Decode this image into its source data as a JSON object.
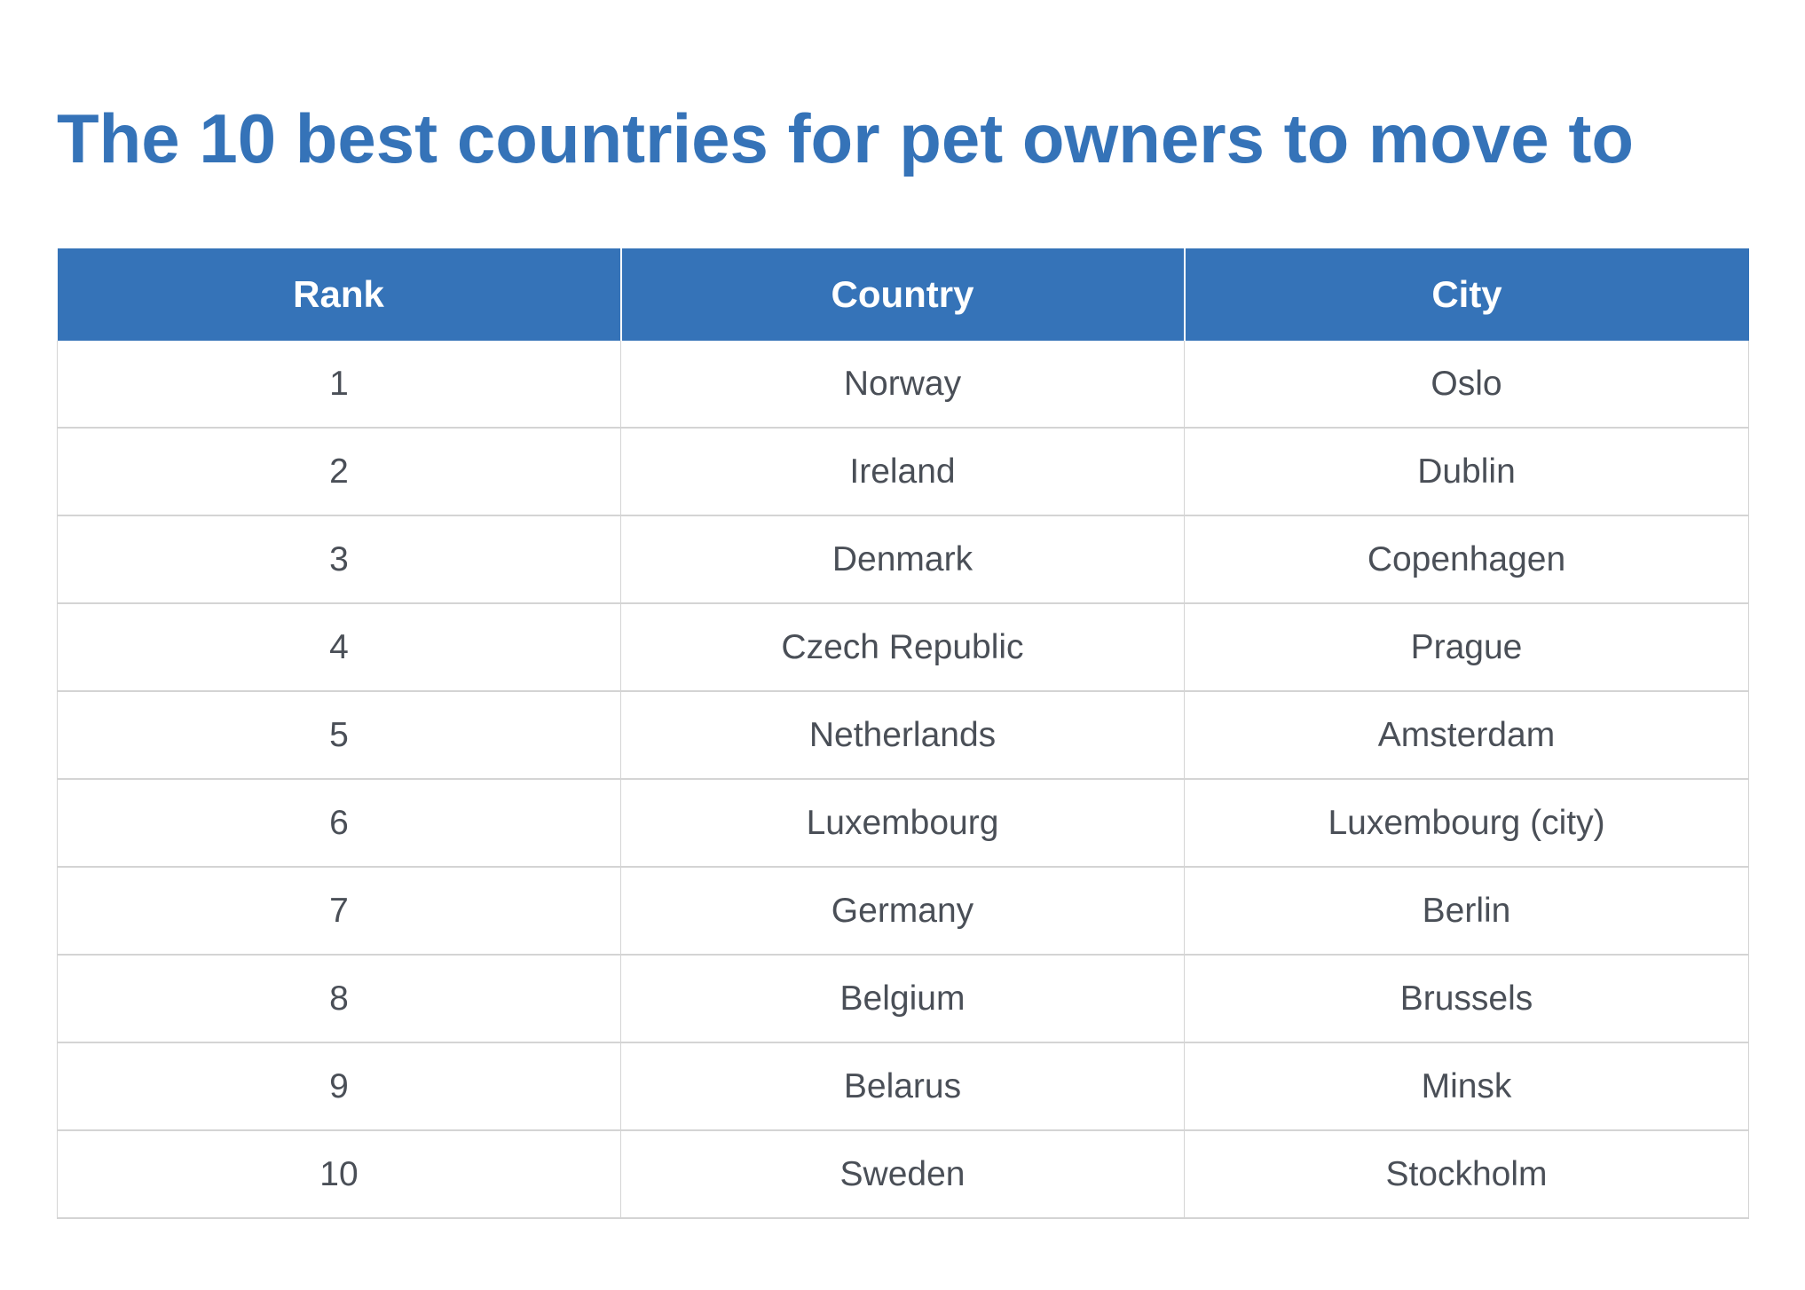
{
  "title": "The 10 best countries for pet owners to move to",
  "table": {
    "headers": [
      "Rank",
      "Country",
      "City"
    ],
    "rows": [
      {
        "rank": "1",
        "country": "Norway",
        "city": "Oslo"
      },
      {
        "rank": "2",
        "country": "Ireland",
        "city": "Dublin"
      },
      {
        "rank": "3",
        "country": "Denmark",
        "city": "Copenhagen"
      },
      {
        "rank": "4",
        "country": "Czech Republic",
        "city": "Prague"
      },
      {
        "rank": "5",
        "country": "Netherlands",
        "city": "Amsterdam"
      },
      {
        "rank": "6",
        "country": "Luxembourg",
        "city": "Luxembourg (city)"
      },
      {
        "rank": "7",
        "country": "Germany",
        "city": "Berlin"
      },
      {
        "rank": "8",
        "country": "Belgium",
        "city": "Brussels"
      },
      {
        "rank": "9",
        "country": "Belarus",
        "city": "Minsk"
      },
      {
        "rank": "10",
        "country": "Sweden",
        "city": "Stockholm"
      }
    ]
  },
  "colors": {
    "accent": "#3573b8",
    "header_text": "#ffffff",
    "body_text": "#4a4f57",
    "grid": "#d4d4d4"
  }
}
